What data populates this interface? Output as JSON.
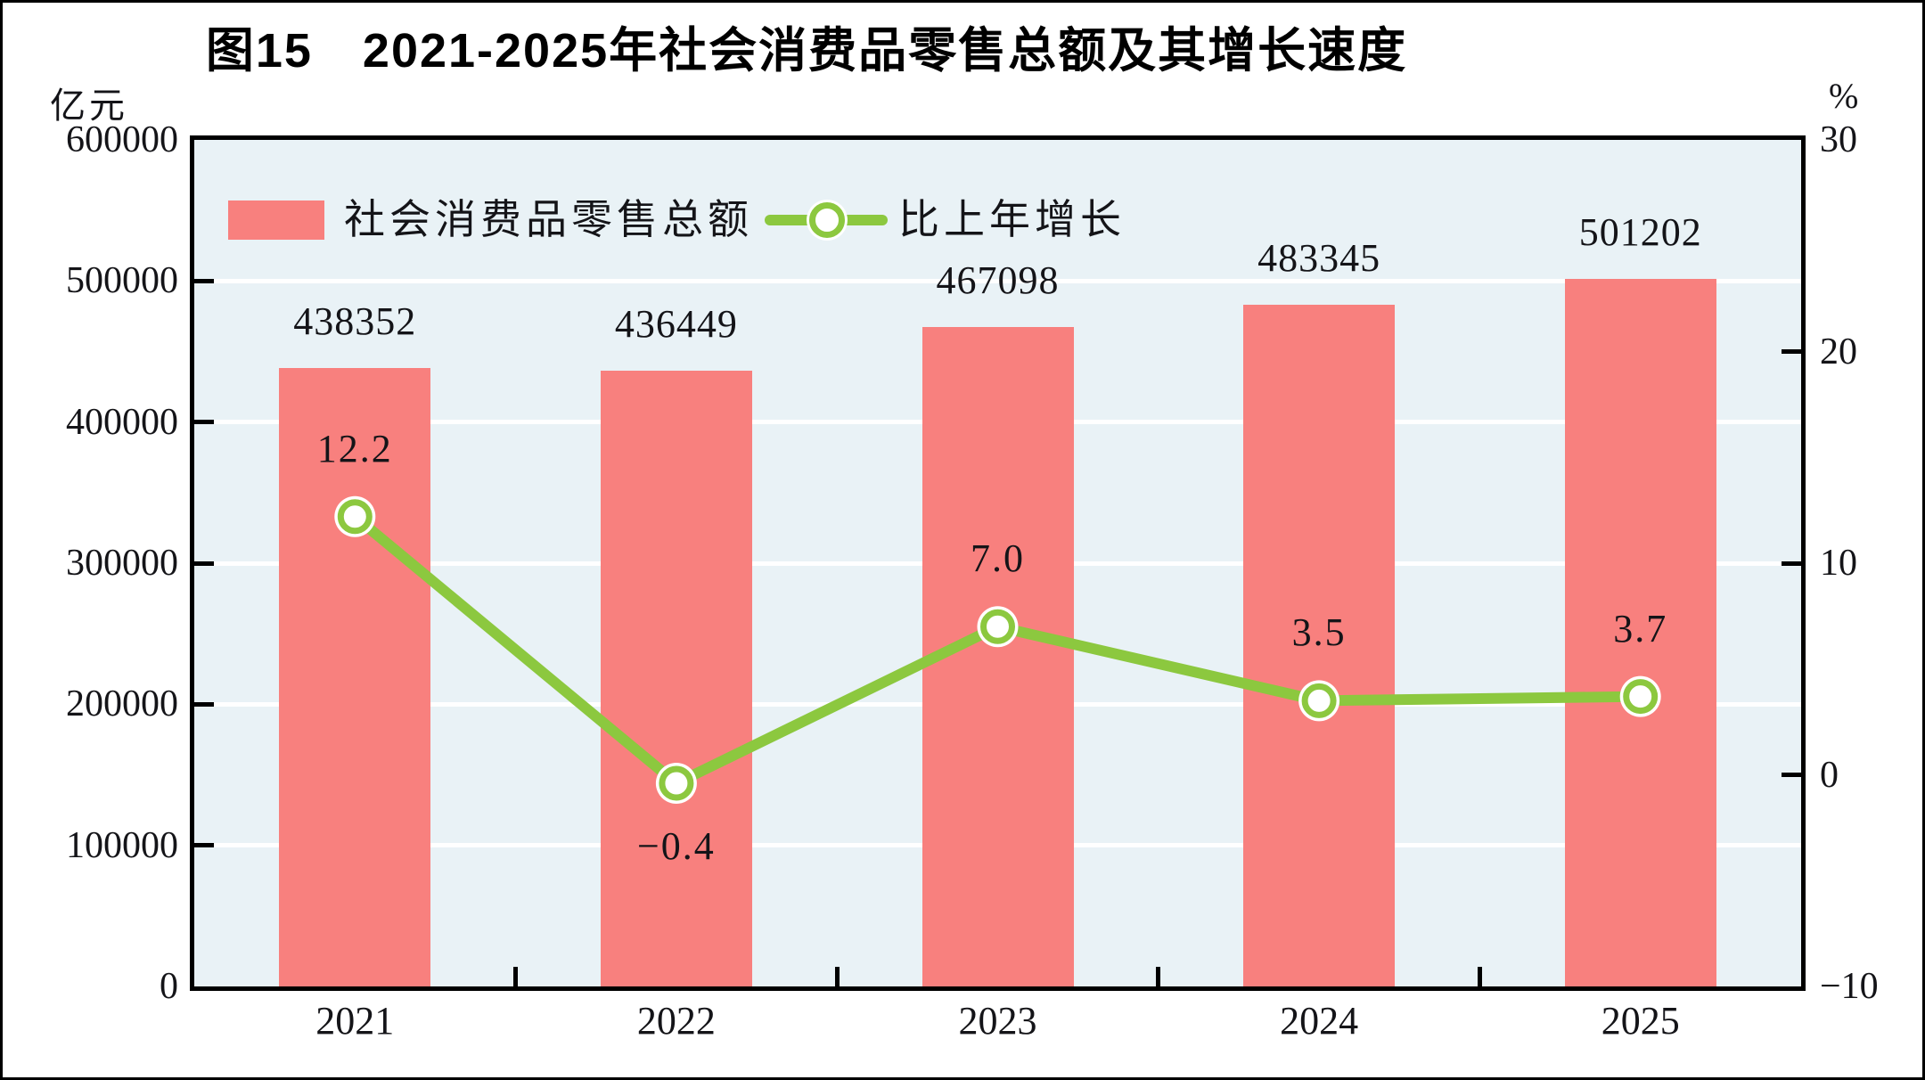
{
  "figure": {
    "title": "图15　2021-2025年社会消费品零售总额及其增长速度",
    "left_axis_unit": "亿元",
    "right_axis_unit": "%"
  },
  "legend": {
    "bar_label": "社会消费品零售总额",
    "line_label": "比上年增长"
  },
  "chart_data": {
    "type": "bar",
    "subtype": "bar+line combo, dual axis",
    "categories": [
      "2021",
      "2022",
      "2023",
      "2024",
      "2025"
    ],
    "series": [
      {
        "name": "社会消费品零售总额",
        "type": "bar",
        "axis": "left",
        "unit": "亿元",
        "values": [
          438352,
          436449,
          467098,
          483345,
          501202
        ],
        "labels": [
          "438352",
          "436449",
          "467098",
          "483345",
          "501202"
        ],
        "color": "#F8807E"
      },
      {
        "name": "比上年增长",
        "type": "line",
        "axis": "right",
        "unit": "%",
        "values": [
          12.2,
          -0.4,
          7.0,
          3.5,
          3.7
        ],
        "labels": [
          "12.2",
          "−0.4",
          "7.0",
          "3.5",
          "3.7"
        ],
        "color": "#8CC83F",
        "marker": "white circle with green ring"
      }
    ],
    "left_axis": {
      "min": 0,
      "max": 600000,
      "step": 100000,
      "tick_labels": [
        "600000",
        "500000",
        "400000",
        "300000",
        "200000",
        "100000",
        "0"
      ]
    },
    "right_axis": {
      "min": -10,
      "max": 30,
      "step": 10,
      "tick_labels": [
        "30",
        "20",
        "10",
        "0",
        "−10"
      ]
    },
    "grid": "horizontal white gridlines at each left-axis step, drawn behind bars",
    "legend_position": "top-left inside plot",
    "plot_background": "#E9F2F6"
  },
  "colors": {
    "bar": "#F8807E",
    "line": "#8CC83F",
    "plot_background": "#E9F2F6",
    "gridline": "#FFFFFF",
    "axis_frame": "#000000",
    "text": "#141418"
  }
}
